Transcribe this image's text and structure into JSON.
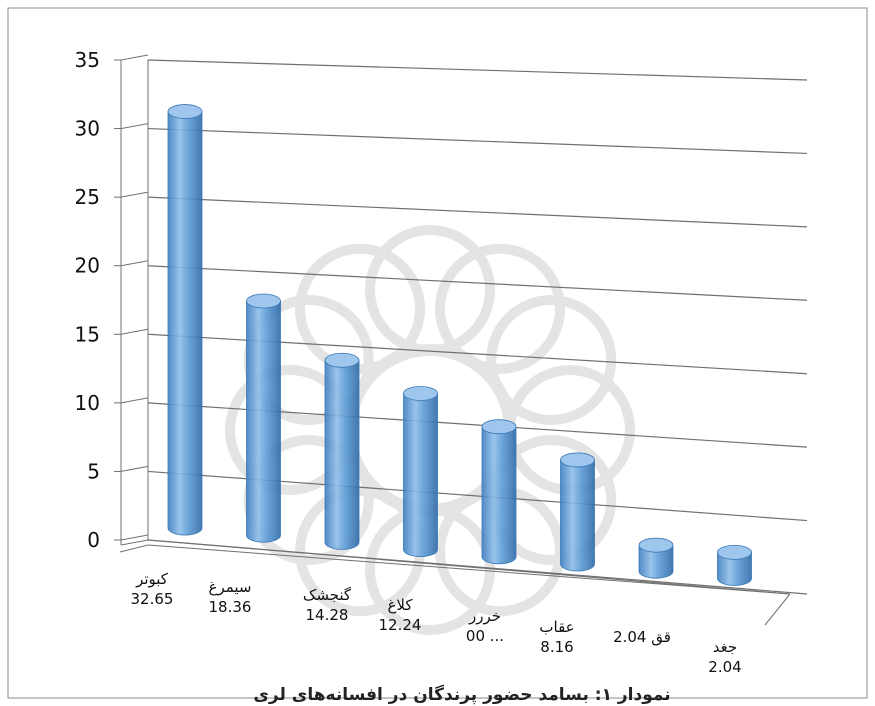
{
  "chart_data": {
    "type": "bar",
    "style": "3d-cylinder",
    "title": "نمودار ۱: بسامد حضور پرندگان در افسانه‌های لری",
    "categories": [
      [
        "کبوتر",
        "32.65"
      ],
      [
        "سیمرغ",
        "18.36"
      ],
      [
        "گنجشک",
        "14.28"
      ],
      [
        "کلاغ",
        "12.24"
      ],
      [
        "خررر",
        "00 ..."
      ],
      [
        "عقاب",
        "8.16"
      ],
      [
        "قق 2.04"
      ],
      [
        "جغد",
        "2.04"
      ]
    ],
    "values": [
      32.65,
      18.36,
      14.28,
      12.24,
      10.2,
      8.16,
      2.04,
      2.04
    ],
    "ylim": [
      0,
      35
    ],
    "yticks": [
      0,
      5,
      10,
      15,
      20,
      25,
      30,
      35
    ],
    "grid": true,
    "legend": "none",
    "colors": {
      "bar": "#5b9bd5",
      "bar_dark": "#3a78b5",
      "bar_light": "#9fc6ec",
      "grid": "#707070",
      "watermark": "#e4e4e4"
    }
  }
}
